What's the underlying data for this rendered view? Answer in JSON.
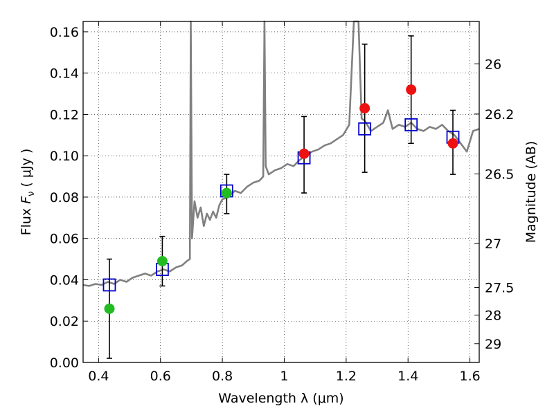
{
  "chart_data": {
    "type": "scatter",
    "title": "",
    "xlabel": "Wavelength  λ (μm)",
    "ylabel": "Flux  F_ν  ( μJy )",
    "ylabel_parts": {
      "prefix": "Flux  ",
      "symbol": "F",
      "subscript": "ν",
      "suffix": " ( μJy )"
    },
    "y2label": "Magnitude (AB)",
    "xlim": [
      0.35,
      1.63
    ],
    "ylim": [
      0.0,
      0.165
    ],
    "grid": true,
    "x_ticks": [
      {
        "value": 0.4,
        "label": "0.4"
      },
      {
        "value": 0.6,
        "label": "0.6"
      },
      {
        "value": 0.8,
        "label": "0.8"
      },
      {
        "value": 1.0,
        "label": "1"
      },
      {
        "value": 1.2,
        "label": "1.2"
      },
      {
        "value": 1.4,
        "label": "1.4"
      },
      {
        "value": 1.6,
        "label": "1.6"
      }
    ],
    "y_ticks": [
      {
        "value": 0.0,
        "label": "0.00"
      },
      {
        "value": 0.02,
        "label": "0.02"
      },
      {
        "value": 0.04,
        "label": "0.04"
      },
      {
        "value": 0.06,
        "label": "0.06"
      },
      {
        "value": 0.08,
        "label": "0.08"
      },
      {
        "value": 0.1,
        "label": "0.10"
      },
      {
        "value": 0.12,
        "label": "0.12"
      },
      {
        "value": 0.14,
        "label": "0.14"
      },
      {
        "value": 0.16,
        "label": "0.16"
      }
    ],
    "y2_ticks": [
      {
        "flux": 0.1445,
        "label": "26"
      },
      {
        "flux": 0.1202,
        "label": "26.2"
      },
      {
        "flux": 0.0912,
        "label": "26.5"
      },
      {
        "flux": 0.0575,
        "label": "27"
      },
      {
        "flux": 0.0363,
        "label": "27.5"
      },
      {
        "flux": 0.0229,
        "label": "28"
      },
      {
        "flux": 0.0091,
        "label": "29"
      }
    ],
    "series": [
      {
        "kind": "line",
        "color": "#808080",
        "values": [
          [
            0.35,
            0.0375
          ],
          [
            0.37,
            0.037
          ],
          [
            0.39,
            0.038
          ],
          [
            0.41,
            0.0375
          ],
          [
            0.43,
            0.039
          ],
          [
            0.45,
            0.038
          ],
          [
            0.47,
            0.04
          ],
          [
            0.49,
            0.039
          ],
          [
            0.51,
            0.041
          ],
          [
            0.53,
            0.042
          ],
          [
            0.55,
            0.043
          ],
          [
            0.57,
            0.042
          ],
          [
            0.59,
            0.044
          ],
          [
            0.61,
            0.045
          ],
          [
            0.63,
            0.044
          ],
          [
            0.65,
            0.046
          ],
          [
            0.67,
            0.047
          ],
          [
            0.685,
            0.049
          ],
          [
            0.695,
            0.05
          ],
          [
            0.698,
            0.165
          ],
          [
            0.702,
            0.06
          ],
          [
            0.71,
            0.078
          ],
          [
            0.72,
            0.07
          ],
          [
            0.73,
            0.075
          ],
          [
            0.74,
            0.066
          ],
          [
            0.75,
            0.072
          ],
          [
            0.76,
            0.069
          ],
          [
            0.77,
            0.073
          ],
          [
            0.78,
            0.07
          ],
          [
            0.79,
            0.076
          ],
          [
            0.8,
            0.079
          ],
          [
            0.82,
            0.08
          ],
          [
            0.84,
            0.083
          ],
          [
            0.86,
            0.082
          ],
          [
            0.88,
            0.085
          ],
          [
            0.9,
            0.087
          ],
          [
            0.92,
            0.088
          ],
          [
            0.932,
            0.09
          ],
          [
            0.936,
            0.165
          ],
          [
            0.94,
            0.095
          ],
          [
            0.95,
            0.091
          ],
          [
            0.97,
            0.093
          ],
          [
            0.99,
            0.094
          ],
          [
            1.01,
            0.096
          ],
          [
            1.03,
            0.095
          ],
          [
            1.05,
            0.098
          ],
          [
            1.07,
            0.1
          ],
          [
            1.09,
            0.102
          ],
          [
            1.11,
            0.103
          ],
          [
            1.13,
            0.105
          ],
          [
            1.15,
            0.106
          ],
          [
            1.17,
            0.108
          ],
          [
            1.19,
            0.11
          ],
          [
            1.21,
            0.115
          ],
          [
            1.225,
            0.165
          ],
          [
            1.24,
            0.165
          ],
          [
            1.25,
            0.118
          ],
          [
            1.26,
            0.117
          ],
          [
            1.28,
            0.112
          ],
          [
            1.3,
            0.114
          ],
          [
            1.32,
            0.116
          ],
          [
            1.335,
            0.122
          ],
          [
            1.35,
            0.113
          ],
          [
            1.37,
            0.115
          ],
          [
            1.39,
            0.114
          ],
          [
            1.41,
            0.116
          ],
          [
            1.43,
            0.113
          ],
          [
            1.45,
            0.112
          ],
          [
            1.47,
            0.114
          ],
          [
            1.49,
            0.113
          ],
          [
            1.51,
            0.115
          ],
          [
            1.53,
            0.112
          ],
          [
            1.55,
            0.11
          ],
          [
            1.57,
            0.106
          ],
          [
            1.59,
            0.102
          ],
          [
            1.61,
            0.112
          ],
          [
            1.63,
            0.113
          ]
        ]
      },
      {
        "kind": "errorbar",
        "color": "#000000",
        "points": [
          {
            "x": 0.435,
            "low": 0.002,
            "high": 0.05
          },
          {
            "x": 0.606,
            "low": 0.037,
            "high": 0.061
          },
          {
            "x": 0.814,
            "low": 0.072,
            "high": 0.091
          },
          {
            "x": 1.064,
            "low": 0.082,
            "high": 0.119
          },
          {
            "x": 1.26,
            "low": 0.092,
            "high": 0.154
          },
          {
            "x": 1.41,
            "low": 0.106,
            "high": 0.158
          },
          {
            "x": 1.545,
            "low": 0.091,
            "high": 0.122
          }
        ]
      },
      {
        "kind": "marker",
        "shape": "square",
        "color": "#0000cc",
        "points": [
          [
            0.435,
            0.0375
          ],
          [
            0.606,
            0.045
          ],
          [
            0.814,
            0.083
          ],
          [
            1.064,
            0.099
          ],
          [
            1.26,
            0.113
          ],
          [
            1.41,
            0.115
          ],
          [
            1.545,
            0.109
          ]
        ]
      },
      {
        "kind": "marker",
        "shape": "circle",
        "color": "#22bb22",
        "points": [
          [
            0.435,
            0.026
          ],
          [
            0.606,
            0.049
          ],
          [
            0.814,
            0.082
          ]
        ]
      },
      {
        "kind": "marker",
        "shape": "circle",
        "color": "#ee1111",
        "points": [
          [
            1.064,
            0.101
          ],
          [
            1.26,
            0.123
          ],
          [
            1.41,
            0.132
          ],
          [
            1.545,
            0.106
          ]
        ]
      }
    ]
  }
}
